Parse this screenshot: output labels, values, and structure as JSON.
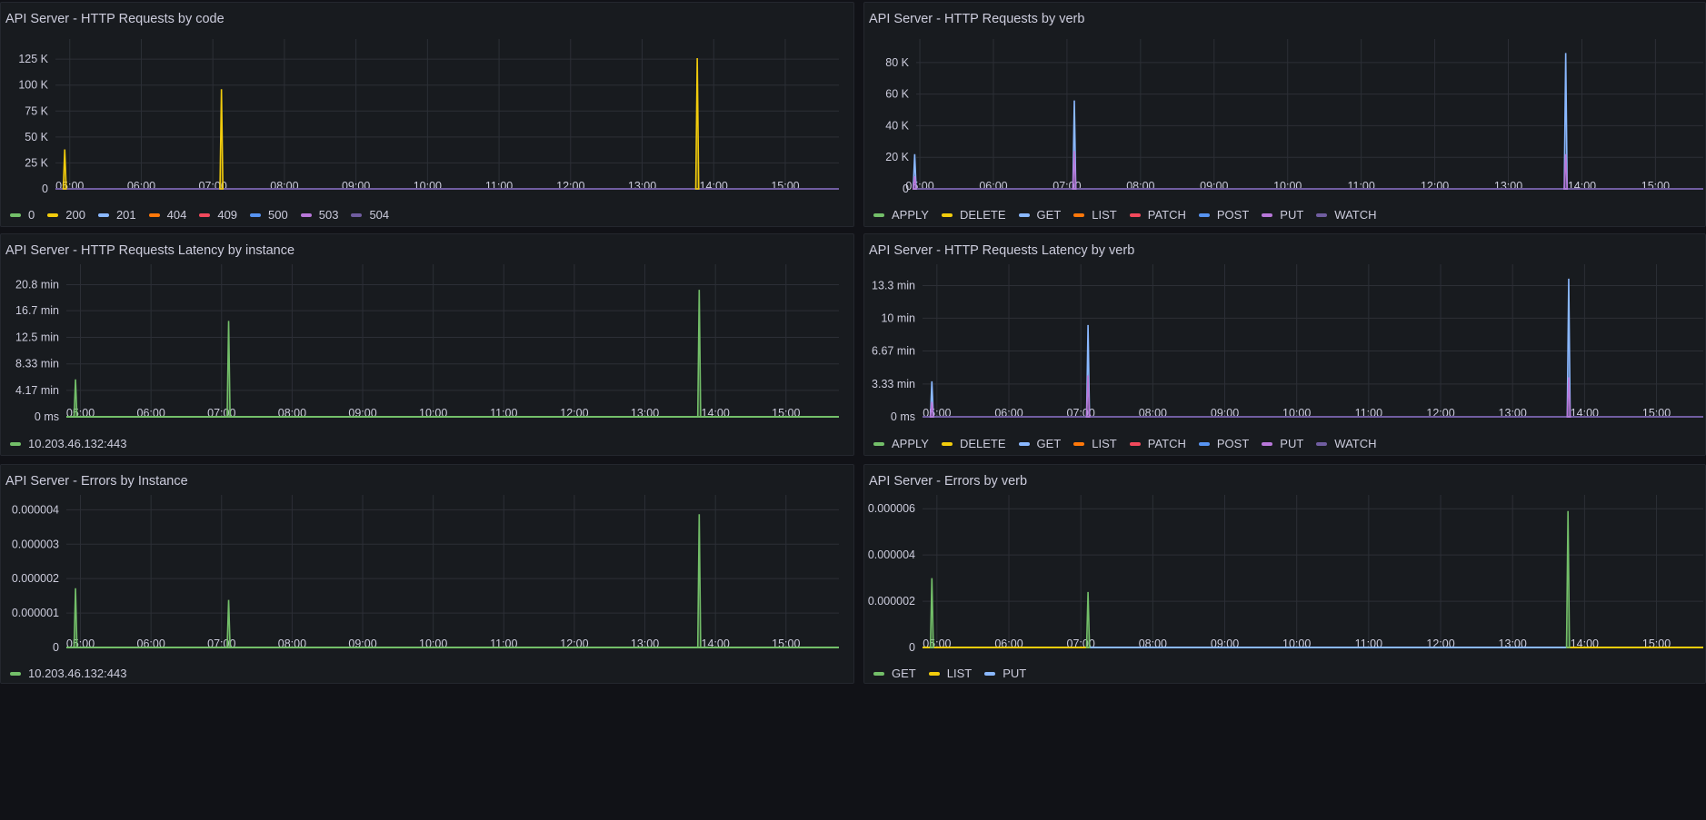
{
  "chart_data": [
    {
      "type": "line",
      "title": "API Server - HTTP Requests by code",
      "y_ticks": [
        "0",
        "25 K",
        "50 K",
        "75 K",
        "100 K",
        "125 K"
      ],
      "ylim": [
        0,
        140000
      ],
      "x_ticks": [
        "05:00",
        "06:00",
        "07:00",
        "08:00",
        "09:00",
        "10:00",
        "11:00",
        "12:00",
        "13:00",
        "14:00",
        "15:00"
      ],
      "xlim_hours": [
        4.8,
        15.75
      ],
      "series": [
        {
          "name": "0",
          "color": "#73bf69",
          "points": []
        },
        {
          "name": "200",
          "color": "#f2cc0c",
          "points": [
            [
              4.93,
              38000
            ],
            [
              7.12,
              96000
            ],
            [
              13.77,
              126000
            ]
          ]
        },
        {
          "name": "201",
          "color": "#8ab8ff",
          "points": []
        },
        {
          "name": "404",
          "color": "#ff780a",
          "points": []
        },
        {
          "name": "409",
          "color": "#f2495c",
          "points": []
        },
        {
          "name": "500",
          "color": "#5794f2",
          "points": []
        },
        {
          "name": "503",
          "color": "#b877d9",
          "points": []
        },
        {
          "name": "504",
          "color": "#705da0",
          "points": []
        }
      ]
    },
    {
      "type": "line",
      "title": "API Server - HTTP Requests by verb",
      "y_ticks": [
        "0",
        "20 K",
        "40 K",
        "60 K",
        "80 K"
      ],
      "ylim": [
        0,
        92000
      ],
      "x_ticks": [
        "05:00",
        "06:00",
        "07:00",
        "08:00",
        "09:00",
        "10:00",
        "11:00",
        "12:00",
        "13:00",
        "14:00",
        "15:00"
      ],
      "xlim_hours": [
        4.95,
        15.65
      ],
      "series": [
        {
          "name": "APPLY",
          "color": "#73bf69",
          "points": []
        },
        {
          "name": "DELETE",
          "color": "#f2cc0c",
          "points": []
        },
        {
          "name": "GET",
          "color": "#8ab8ff",
          "points": [
            [
              4.93,
              22000
            ],
            [
              7.1,
              56000
            ],
            [
              13.78,
              86000
            ]
          ]
        },
        {
          "name": "LIST",
          "color": "#ff780a",
          "points": []
        },
        {
          "name": "PATCH",
          "color": "#f2495c",
          "points": []
        },
        {
          "name": "POST",
          "color": "#5794f2",
          "points": []
        },
        {
          "name": "PUT",
          "color": "#b877d9",
          "points": [
            [
              4.93,
              8000
            ],
            [
              7.1,
              24000
            ],
            [
              13.78,
              22000
            ]
          ]
        },
        {
          "name": "WATCH",
          "color": "#705da0",
          "points": []
        }
      ]
    },
    {
      "type": "line",
      "title": "API Server - HTTP Requests Latency by instance",
      "y_ticks": [
        "0 ms",
        "4.17 min",
        "8.33 min",
        "12.5 min",
        "16.7 min",
        "20.8 min"
      ],
      "ylim": [
        0,
        23.3
      ],
      "x_ticks": [
        "05:00",
        "06:00",
        "07:00",
        "08:00",
        "09:00",
        "10:00",
        "11:00",
        "12:00",
        "13:00",
        "14:00",
        "15:00"
      ],
      "xlim_hours": [
        4.8,
        15.75
      ],
      "series": [
        {
          "name": "10.203.46.132:443",
          "color": "#73bf69",
          "points": [
            [
              4.93,
              5.9
            ],
            [
              7.1,
              15.1
            ],
            [
              13.77,
              20.0
            ]
          ]
        }
      ]
    },
    {
      "type": "line",
      "title": "API Server - HTTP Requests Latency by verb",
      "y_ticks": [
        "0 ms",
        "3.33 min",
        "6.67 min",
        "10 min",
        "13.3 min"
      ],
      "ylim": [
        0,
        15
      ],
      "x_ticks": [
        "05:00",
        "06:00",
        "07:00",
        "08:00",
        "09:00",
        "10:00",
        "11:00",
        "12:00",
        "13:00",
        "14:00",
        "15:00"
      ],
      "xlim_hours": [
        4.8,
        15.65
      ],
      "series": [
        {
          "name": "APPLY",
          "color": "#73bf69",
          "points": []
        },
        {
          "name": "DELETE",
          "color": "#f2cc0c",
          "points": []
        },
        {
          "name": "GET",
          "color": "#8ab8ff",
          "points": [
            [
              4.93,
              3.6
            ],
            [
              7.1,
              9.3
            ],
            [
              13.78,
              14.0
            ]
          ]
        },
        {
          "name": "LIST",
          "color": "#ff780a",
          "points": []
        },
        {
          "name": "PATCH",
          "color": "#f2495c",
          "points": []
        },
        {
          "name": "POST",
          "color": "#5794f2",
          "points": []
        },
        {
          "name": "PUT",
          "color": "#b877d9",
          "points": [
            [
              4.93,
              1.5
            ],
            [
              7.1,
              4.2
            ],
            [
              13.78,
              4.0
            ]
          ]
        },
        {
          "name": "WATCH",
          "color": "#705da0",
          "points": []
        }
      ]
    },
    {
      "type": "line",
      "title": "API Server - Errors by Instance",
      "y_ticks": [
        "0",
        "0.000001",
        "0.000002",
        "0.000003",
        "0.000004"
      ],
      "ylim": [
        0,
        4.3e-06
      ],
      "x_ticks": [
        "05:00",
        "06:00",
        "07:00",
        "08:00",
        "09:00",
        "10:00",
        "11:00",
        "12:00",
        "13:00",
        "14:00",
        "15:00"
      ],
      "xlim_hours": [
        4.8,
        15.75
      ],
      "series": [
        {
          "name": "10.203.46.132:443",
          "color": "#73bf69",
          "points": [
            [
              4.93,
              1.72e-06
            ],
            [
              7.1,
              1.38e-06
            ],
            [
              13.77,
              3.87e-06
            ]
          ]
        }
      ]
    },
    {
      "type": "line",
      "title": "API Server - Errors by verb",
      "y_ticks": [
        "0",
        "0.000002",
        "0.000004",
        "0.000006"
      ],
      "ylim": [
        0,
        6.4e-06
      ],
      "x_ticks": [
        "05:00",
        "06:00",
        "07:00",
        "08:00",
        "09:00",
        "10:00",
        "11:00",
        "12:00",
        "13:00",
        "14:00",
        "15:00"
      ],
      "xlim_hours": [
        4.8,
        15.65
      ],
      "series": [
        {
          "name": "GET",
          "color": "#73bf69",
          "points": [
            [
              4.93,
              3e-06
            ],
            [
              7.1,
              2.4e-06
            ],
            [
              13.77,
              5.9e-06
            ]
          ]
        },
        {
          "name": "LIST",
          "color": "#f2cc0c",
          "points": []
        },
        {
          "name": "PUT",
          "color": "#8ab8ff",
          "points": []
        }
      ],
      "baseline_colors": {
        "before": "#f2cc0c",
        "middle": "#8ab8ff",
        "after": "#f2cc0c"
      }
    }
  ]
}
